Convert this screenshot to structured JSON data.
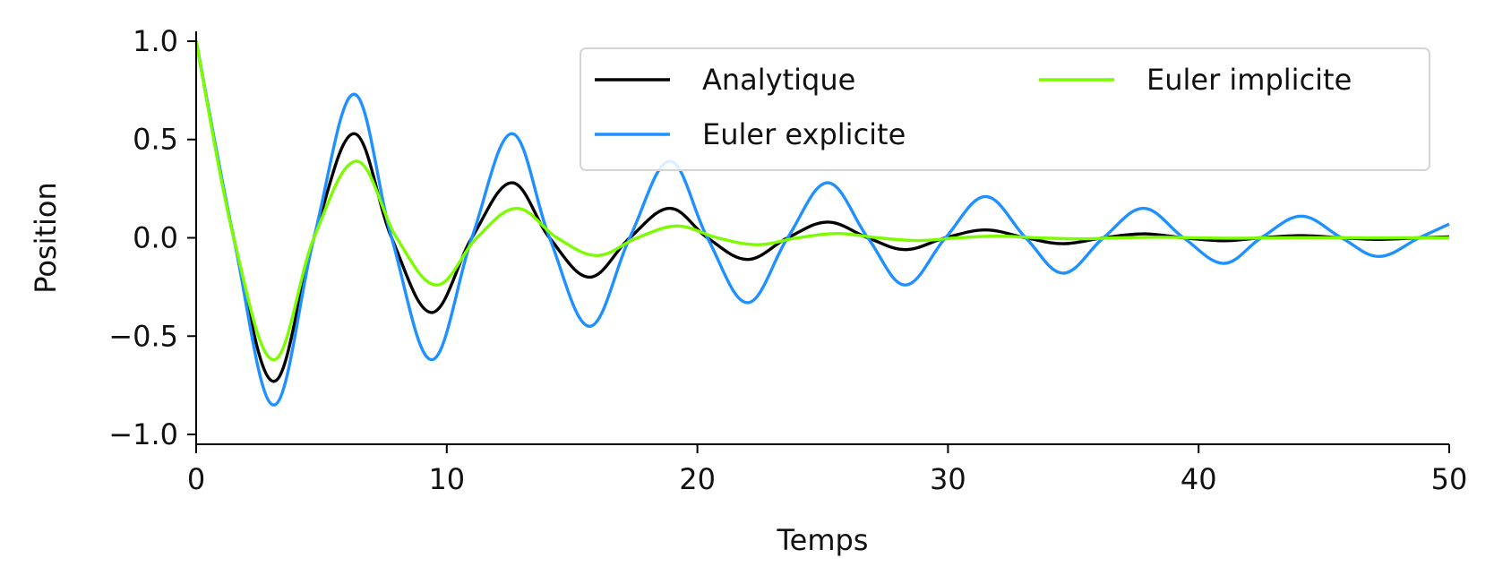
{
  "chart_data": {
    "type": "line",
    "title": "",
    "xlabel": "Temps",
    "ylabel": "Position",
    "xlim": [
      0,
      50
    ],
    "ylim": [
      -1.05,
      1.05
    ],
    "x_ticks": [
      0,
      10,
      20,
      30,
      40,
      50
    ],
    "y_ticks": [
      1.0,
      0.5,
      0.0,
      -0.5,
      -1.0
    ],
    "x_tick_labels": [
      "0",
      "10",
      "20",
      "30",
      "40",
      "50"
    ],
    "y_tick_labels": [
      "1.0",
      "0.5",
      "0.0",
      "−0.5",
      "−1.0"
    ],
    "grid": false,
    "legend_position": "top-right",
    "series": [
      {
        "name": "Analytique",
        "color": "#000000",
        "x": [
          0,
          1.5,
          3.1,
          4.7,
          6.3,
          7.8,
          9.4,
          11.0,
          12.6,
          14.1,
          15.7,
          17.3,
          18.9,
          20.4,
          22.0,
          23.6,
          25.2,
          26.8,
          28.3,
          29.9,
          31.5,
          33.1,
          34.6,
          36.2,
          37.8,
          39.4,
          41.0,
          42.5,
          44.1,
          45.7,
          47.2,
          48.8,
          50.0
        ],
        "y": [
          1.0,
          0.0,
          -0.73,
          0.0,
          0.53,
          0.0,
          -0.38,
          0.0,
          0.28,
          0.0,
          -0.2,
          0.0,
          0.15,
          0.0,
          -0.11,
          0.0,
          0.08,
          0.0,
          -0.06,
          0.0,
          0.04,
          0.0,
          -0.03,
          0.0,
          0.02,
          0.0,
          -0.015,
          0.0,
          0.011,
          0.0,
          -0.008,
          0.0,
          0.005
        ]
      },
      {
        "name": "Euler explicite",
        "color": "#1e90ff",
        "x": [
          0,
          1.5,
          3.1,
          4.7,
          6.3,
          7.8,
          9.4,
          11.0,
          12.6,
          14.1,
          15.7,
          17.3,
          18.9,
          20.4,
          22.0,
          23.6,
          25.2,
          26.8,
          28.3,
          29.9,
          31.5,
          33.1,
          34.6,
          36.2,
          37.8,
          39.4,
          41.0,
          42.5,
          44.1,
          45.7,
          47.2,
          48.8,
          50.0
        ],
        "y": [
          1.0,
          0.0,
          -0.85,
          0.0,
          0.73,
          0.0,
          -0.62,
          0.0,
          0.53,
          0.0,
          -0.45,
          0.0,
          0.39,
          0.0,
          -0.33,
          0.0,
          0.28,
          0.0,
          -0.24,
          0.0,
          0.21,
          0.0,
          -0.18,
          0.0,
          0.15,
          0.0,
          -0.13,
          0.0,
          0.11,
          0.0,
          -0.095,
          0.0,
          0.07
        ]
      },
      {
        "name": "Euler implicite",
        "color": "#7cfc00",
        "x": [
          0,
          1.5,
          3.1,
          4.7,
          6.4,
          8.0,
          9.6,
          11.2,
          12.8,
          14.4,
          16.0,
          17.6,
          19.2,
          20.8,
          22.4,
          24.0,
          25.6,
          27.2,
          28.8,
          30.4,
          32.0,
          33.6,
          35.2,
          36.8,
          38.4,
          40.0,
          41.6,
          43.2,
          44.8,
          46.4,
          48.0,
          50.0
        ],
        "y": [
          1.0,
          0.0,
          -0.62,
          0.0,
          0.39,
          0.0,
          -0.24,
          0.0,
          0.15,
          0.0,
          -0.09,
          0.0,
          0.06,
          0.0,
          -0.035,
          0.0,
          0.022,
          0.0,
          -0.014,
          0.0,
          0.009,
          0.0,
          -0.005,
          0.0,
          0.003,
          0.0,
          -0.002,
          0.0,
          0.001,
          0.0,
          0.0,
          0.0
        ]
      }
    ]
  }
}
